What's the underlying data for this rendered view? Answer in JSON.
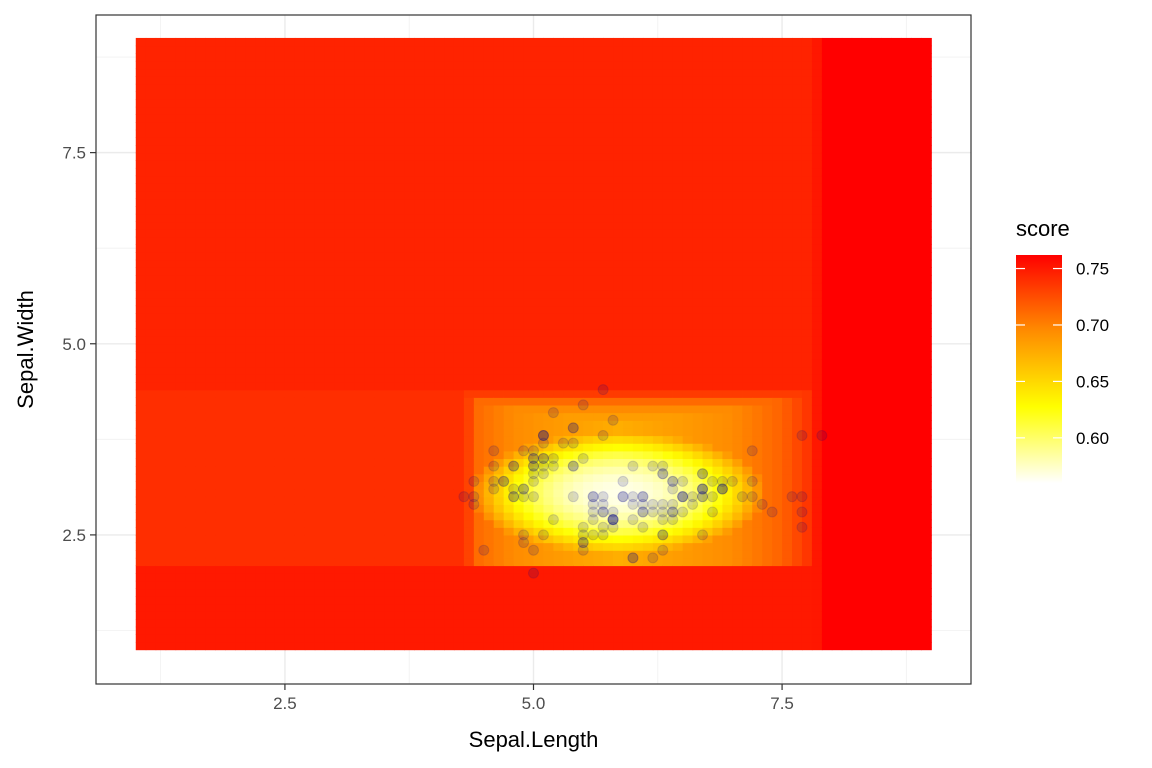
{
  "chart_data": {
    "type": "heatmap",
    "xlabel": "Sepal.Length",
    "ylabel": "Sepal.Width",
    "xlim": [
      0.6,
      9.4
    ],
    "ylim": [
      0.55,
      9.3
    ],
    "x_ticks": [
      2.5,
      5.0,
      7.5
    ],
    "x_tick_labels": [
      "2.5",
      "5.0",
      "7.5"
    ],
    "y_ticks": [
      2.5,
      5.0,
      7.5
    ],
    "y_tick_labels": [
      "2.5",
      "5.0",
      "7.5"
    ],
    "grid": true,
    "theme": "bw",
    "fill_variable": "score",
    "heatmap_extent": {
      "x": [
        1.0,
        9.0
      ],
      "y": [
        1.0,
        9.0
      ]
    },
    "score_model": {
      "center": [
        5.85,
        3.05
      ],
      "min": 0.56,
      "max": 0.762,
      "x_profile": [
        [
          1.0,
          0.74
        ],
        [
          4.3,
          0.74
        ],
        [
          4.45,
          0.71
        ],
        [
          4.8,
          0.695
        ],
        [
          5.85,
          0.675
        ],
        [
          7.0,
          0.695
        ],
        [
          7.5,
          0.715
        ],
        [
          7.8,
          0.74
        ],
        [
          7.9,
          0.762
        ],
        [
          9.0,
          0.762
        ]
      ],
      "y_profile": [
        [
          1.0,
          0.75
        ],
        [
          2.05,
          0.75
        ],
        [
          2.15,
          0.67
        ],
        [
          2.6,
          0.635
        ],
        [
          3.05,
          0.62
        ],
        [
          3.6,
          0.64
        ],
        [
          4.2,
          0.7
        ],
        [
          4.4,
          0.745
        ],
        [
          9.0,
          0.745
        ]
      ]
    },
    "legend": {
      "title": "score",
      "position": "right",
      "breaks": [
        0.6,
        0.65,
        0.7,
        0.75
      ],
      "labels": [
        "0.60",
        "0.65",
        "0.70",
        "0.75"
      ],
      "colors_low_to_high": [
        "#ffffff",
        "#ffff00",
        "#ff8c00",
        "#ff0000"
      ],
      "limits": [
        0.56,
        0.762
      ]
    },
    "points": {
      "color": "#00008b",
      "opacity": 0.15,
      "x": [
        5.1,
        4.9,
        4.7,
        4.6,
        5.0,
        5.4,
        4.6,
        5.0,
        4.4,
        4.9,
        5.4,
        4.8,
        4.8,
        4.3,
        5.8,
        5.7,
        5.4,
        5.1,
        5.7,
        5.1,
        5.4,
        5.1,
        4.6,
        5.1,
        4.8,
        5.0,
        5.0,
        5.2,
        5.2,
        4.7,
        4.8,
        5.4,
        5.2,
        5.5,
        4.9,
        5.0,
        5.5,
        4.9,
        4.4,
        5.1,
        5.0,
        4.5,
        4.4,
        5.0,
        5.1,
        4.8,
        5.1,
        4.6,
        5.3,
        5.0,
        7.0,
        6.4,
        6.9,
        5.5,
        6.5,
        5.7,
        6.3,
        4.9,
        6.6,
        5.2,
        5.0,
        5.9,
        6.0,
        6.1,
        5.6,
        6.7,
        5.6,
        5.8,
        6.2,
        5.6,
        5.9,
        6.1,
        6.3,
        6.1,
        6.4,
        6.6,
        6.8,
        6.7,
        6.0,
        5.7,
        5.5,
        5.5,
        5.8,
        6.0,
        5.4,
        6.0,
        6.7,
        6.3,
        5.6,
        5.5,
        5.5,
        6.1,
        5.8,
        5.0,
        5.6,
        5.7,
        5.7,
        6.2,
        5.1,
        5.7,
        6.3,
        5.8,
        7.1,
        6.3,
        6.5,
        7.6,
        4.9,
        7.3,
        6.7,
        7.2,
        6.5,
        6.4,
        6.8,
        5.7,
        5.8,
        6.4,
        6.5,
        7.7,
        7.7,
        6.0,
        6.9,
        5.6,
        7.7,
        6.3,
        6.7,
        7.2,
        6.2,
        6.1,
        6.4,
        7.2,
        7.4,
        7.9,
        6.4,
        6.3,
        6.1,
        7.7,
        6.3,
        6.4,
        6.0,
        6.9,
        6.7,
        6.9,
        5.8,
        6.8,
        6.7,
        6.7,
        6.3,
        6.5,
        6.2,
        5.9
      ],
      "y": [
        3.5,
        3.0,
        3.2,
        3.1,
        3.6,
        3.9,
        3.4,
        3.4,
        2.9,
        3.1,
        3.7,
        3.4,
        3.0,
        3.0,
        4.0,
        4.4,
        3.9,
        3.5,
        3.8,
        3.8,
        3.4,
        3.7,
        3.6,
        3.3,
        3.4,
        3.0,
        3.4,
        3.5,
        3.4,
        3.2,
        3.1,
        3.4,
        4.1,
        4.2,
        3.1,
        3.2,
        3.5,
        3.6,
        3.0,
        3.4,
        3.5,
        2.3,
        3.2,
        3.5,
        3.8,
        3.0,
        3.8,
        3.2,
        3.7,
        3.3,
        3.2,
        3.2,
        3.1,
        2.3,
        2.8,
        2.8,
        3.3,
        2.4,
        2.9,
        2.7,
        2.0,
        3.0,
        2.2,
        2.9,
        2.9,
        3.1,
        3.0,
        2.7,
        2.2,
        2.5,
        3.2,
        2.8,
        2.5,
        2.8,
        2.9,
        3.0,
        2.8,
        3.0,
        2.9,
        2.6,
        2.4,
        2.4,
        2.7,
        2.7,
        3.0,
        3.4,
        3.1,
        2.3,
        3.0,
        2.5,
        2.6,
        3.0,
        2.6,
        2.3,
        2.7,
        3.0,
        2.9,
        2.9,
        2.5,
        2.8,
        3.3,
        2.7,
        3.0,
        2.9,
        3.0,
        3.0,
        2.5,
        2.9,
        2.5,
        3.6,
        3.2,
        2.7,
        3.0,
        2.5,
        2.8,
        3.2,
        3.0,
        3.8,
        2.6,
        2.2,
        3.2,
        2.8,
        2.8,
        2.7,
        3.3,
        3.2,
        2.8,
        3.0,
        2.8,
        3.0,
        2.8,
        3.8,
        2.8,
        2.8,
        2.6,
        3.0,
        3.4,
        3.1,
        3.0,
        3.1,
        3.1,
        3.1,
        2.7,
        3.2,
        3.3,
        3.0,
        2.5,
        3.0,
        3.4,
        3.0
      ]
    }
  }
}
